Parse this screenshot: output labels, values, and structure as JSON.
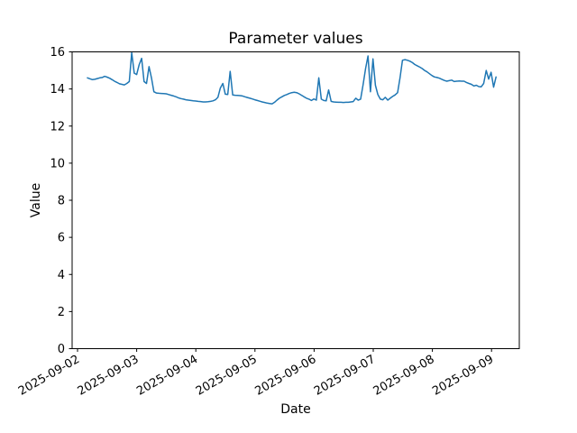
{
  "figure": {
    "title": "Parameter values",
    "xlabel": "Date",
    "ylabel": "Value"
  },
  "chart_data": {
    "type": "line",
    "title": "Parameter values",
    "xlabel": "Date",
    "ylabel": "Value",
    "ylim": [
      0,
      16
    ],
    "yticks": [
      0,
      2,
      4,
      6,
      8,
      10,
      12,
      14,
      16
    ],
    "x_tick_labels": [
      "2025-09-02",
      "2025-09-03",
      "2025-09-04",
      "2025-09-05",
      "2025-09-06",
      "2025-09-07",
      "2025-09-08",
      "2025-09-09"
    ],
    "grid": false,
    "legend": "none",
    "background": "#ffffff",
    "frame_color": "#000000",
    "series": [
      {
        "name": "parameter-values",
        "color": "#1f77b4",
        "x_start": "2025-09-02 04:00",
        "x_interval_hours": 1,
        "values": [
          14.6,
          14.55,
          14.5,
          14.52,
          14.56,
          14.6,
          14.62,
          14.68,
          14.64,
          14.58,
          14.5,
          14.42,
          14.35,
          14.28,
          14.25,
          14.22,
          14.3,
          14.4,
          15.95,
          14.85,
          14.78,
          15.3,
          15.65,
          14.4,
          14.3,
          15.2,
          14.6,
          13.85,
          13.78,
          13.77,
          13.76,
          13.75,
          13.74,
          13.7,
          13.66,
          13.62,
          13.58,
          13.52,
          13.48,
          13.45,
          13.42,
          13.4,
          13.38,
          13.36,
          13.35,
          13.33,
          13.32,
          13.3,
          13.3,
          13.31,
          13.33,
          13.36,
          13.42,
          13.55,
          14.05,
          14.3,
          13.72,
          13.7,
          14.95,
          13.68,
          13.66,
          13.65,
          13.64,
          13.62,
          13.58,
          13.54,
          13.5,
          13.46,
          13.42,
          13.38,
          13.34,
          13.3,
          13.27,
          13.24,
          13.22,
          13.2,
          13.28,
          13.4,
          13.5,
          13.58,
          13.65,
          13.7,
          13.76,
          13.8,
          13.82,
          13.8,
          13.74,
          13.66,
          13.58,
          13.5,
          13.45,
          13.38,
          13.46,
          13.4,
          14.6,
          13.45,
          13.38,
          13.36,
          13.95,
          13.33,
          13.3,
          13.29,
          13.28,
          13.28,
          13.27,
          13.28,
          13.28,
          13.3,
          13.32,
          13.5,
          13.4,
          13.45,
          14.25,
          15.1,
          15.78,
          13.85,
          15.62,
          14.2,
          13.7,
          13.45,
          13.42,
          13.55,
          13.4,
          13.5,
          13.6,
          13.68,
          13.8,
          14.6,
          15.55,
          15.58,
          15.55,
          15.5,
          15.42,
          15.32,
          15.25,
          15.18,
          15.1,
          15.0,
          14.92,
          14.82,
          14.72,
          14.65,
          14.62,
          14.58,
          14.52,
          14.46,
          14.42,
          14.45,
          14.48,
          14.4,
          14.42,
          14.43,
          14.42,
          14.42,
          14.35,
          14.3,
          14.25,
          14.16,
          14.2,
          14.13,
          14.12,
          14.3,
          15.0,
          14.53,
          14.9,
          14.1,
          14.65
        ]
      }
    ]
  }
}
